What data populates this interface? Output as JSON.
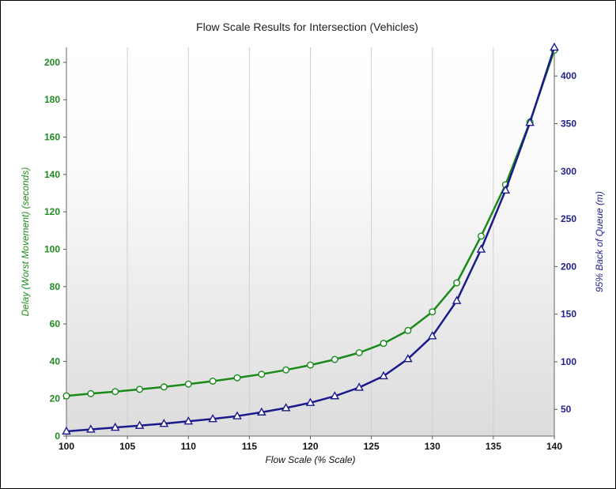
{
  "chart_data": {
    "type": "line",
    "title": "Flow Scale Results for Intersection (Vehicles)",
    "xlabel": "Flow Scale (% Scale)",
    "ylabel": "Delay (Worst Movement) (seconds)",
    "y2label": "95% Back of Queue (m)",
    "xlim": [
      100,
      140
    ],
    "ylim": [
      0,
      208
    ],
    "y2lim": [
      22,
      430
    ],
    "x_ticks": [
      100,
      105,
      110,
      115,
      120,
      125,
      130,
      135,
      140
    ],
    "y_ticks": [
      0,
      20,
      40,
      60,
      80,
      100,
      120,
      140,
      160,
      180,
      200
    ],
    "y2_ticks": [
      50,
      100,
      150,
      200,
      250,
      300,
      350,
      400
    ],
    "grid": "vertical",
    "x": [
      100,
      102,
      104,
      106,
      108,
      110,
      112,
      114,
      116,
      118,
      120,
      122,
      124,
      126,
      128,
      130,
      132,
      134,
      136,
      138,
      140
    ],
    "series": [
      {
        "axis": "left",
        "color": "#1a8a1a",
        "marker": "circle",
        "values": [
          21.5,
          22.7,
          23.8,
          25.0,
          26.3,
          27.8,
          29.4,
          31.2,
          33.1,
          35.4,
          38.0,
          41.0,
          44.6,
          49.6,
          56.5,
          66.5,
          82.0,
          107.0,
          134.5,
          168.0,
          206.5
        ]
      },
      {
        "axis": "right",
        "color": "#1a1a8c",
        "marker": "triangle",
        "values": [
          27,
          29,
          31,
          33,
          35,
          37.5,
          40,
          43,
          47,
          51.5,
          57,
          64,
          73,
          85,
          103,
          127,
          164,
          218,
          280,
          351,
          430
        ]
      }
    ]
  }
}
